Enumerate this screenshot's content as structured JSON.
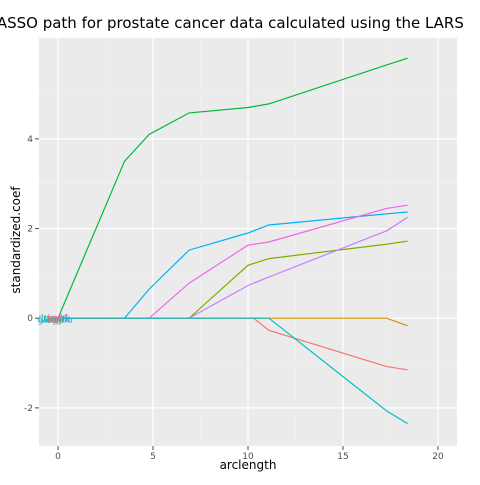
{
  "chart_data": {
    "type": "line",
    "title": "LASSO path for prostate cancer data calculated using the LARS",
    "xlabel": "arclength",
    "ylabel": "standardized.coef",
    "xlim": [
      -1,
      21
    ],
    "ylim": [
      -2.85,
      6.25
    ],
    "xticks": [
      0,
      5,
      10,
      15,
      20
    ],
    "xtick_labels": [
      "0",
      "5",
      "10",
      "15",
      "20"
    ],
    "yticks": [
      -2,
      0,
      2,
      4
    ],
    "ytick_labels": [
      "-2",
      "0",
      "2",
      "4"
    ],
    "grid": true,
    "background": "#ebebeb",
    "gridline_color": "#ffffff",
    "legend": "none",
    "series": [
      {
        "color": "#00ba38",
        "start_label": "lcavol",
        "points": [
          [
            -0.2,
            0
          ],
          [
            0,
            0
          ],
          [
            3.5,
            3.5
          ],
          [
            4.8,
            4.1
          ],
          [
            6.9,
            4.58
          ],
          [
            10,
            4.7
          ],
          [
            11.1,
            4.78
          ],
          [
            17.3,
            5.65
          ],
          [
            18.4,
            5.8
          ]
        ]
      },
      {
        "color": "#00b0f6",
        "start_label": "lweight",
        "points": [
          [
            -0.2,
            0
          ],
          [
            3.5,
            0
          ],
          [
            4.8,
            0.65
          ],
          [
            6.9,
            1.52
          ],
          [
            10,
            1.9
          ],
          [
            11.1,
            2.08
          ],
          [
            17.3,
            2.33
          ],
          [
            18.4,
            2.37
          ]
        ]
      },
      {
        "color": "#f564e3",
        "start_label": "svi",
        "points": [
          [
            -0.2,
            0
          ],
          [
            4.8,
            0
          ],
          [
            6.9,
            0.78
          ],
          [
            10,
            1.63
          ],
          [
            11.1,
            1.7
          ],
          [
            17.3,
            2.45
          ],
          [
            18.4,
            2.52
          ]
        ]
      },
      {
        "color": "#7cae00",
        "start_label": "lbph",
        "points": [
          [
            -0.2,
            0
          ],
          [
            6.9,
            0
          ],
          [
            10,
            1.18
          ],
          [
            11.1,
            1.33
          ],
          [
            17.3,
            1.65
          ],
          [
            18.4,
            1.72
          ]
        ]
      },
      {
        "color": "#c77cff",
        "start_label": "pgg45",
        "points": [
          [
            -0.2,
            0
          ],
          [
            6.9,
            0
          ],
          [
            10,
            0.73
          ],
          [
            11.1,
            0.92
          ],
          [
            17.3,
            1.95
          ],
          [
            18.4,
            2.25
          ]
        ]
      },
      {
        "color": "#cd9600",
        "start_label": "age",
        "points": [
          [
            -0.2,
            0
          ],
          [
            17.3,
            0
          ],
          [
            18.4,
            -0.17
          ]
        ]
      },
      {
        "color": "#f8766d",
        "start_label": "lcp",
        "points": [
          [
            -0.2,
            0
          ],
          [
            10.3,
            0
          ],
          [
            11.1,
            -0.27
          ],
          [
            17.3,
            -1.08
          ],
          [
            18.4,
            -1.15
          ]
        ]
      },
      {
        "color": "#00bfc4",
        "start_label": "gleason",
        "points": [
          [
            -0.2,
            0
          ],
          [
            11.1,
            0
          ],
          [
            17.3,
            -2.07
          ],
          [
            18.4,
            -2.35
          ]
        ]
      }
    ]
  }
}
